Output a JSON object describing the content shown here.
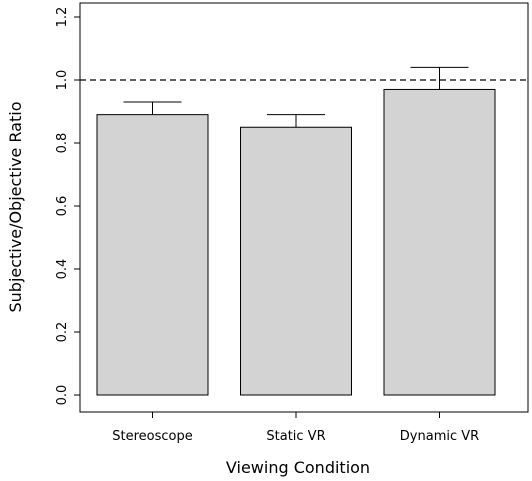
{
  "chart_data": {
    "type": "bar",
    "title": "",
    "xlabel": "Viewing Condition",
    "ylabel": "Subjective/Objective Ratio",
    "categories": [
      "Stereoscope",
      "Static VR",
      "Dynamic VR"
    ],
    "values": [
      0.89,
      0.85,
      0.97
    ],
    "error_upper": [
      0.93,
      0.89,
      1.04
    ],
    "ylim": [
      0.0,
      1.25
    ],
    "yticks": [
      "0.0",
      "0.2",
      "0.4",
      "0.6",
      "0.8",
      "1.0",
      "1.2"
    ],
    "reference_line": 1.0,
    "grid": false,
    "bar_color": "#d3d3d3"
  }
}
